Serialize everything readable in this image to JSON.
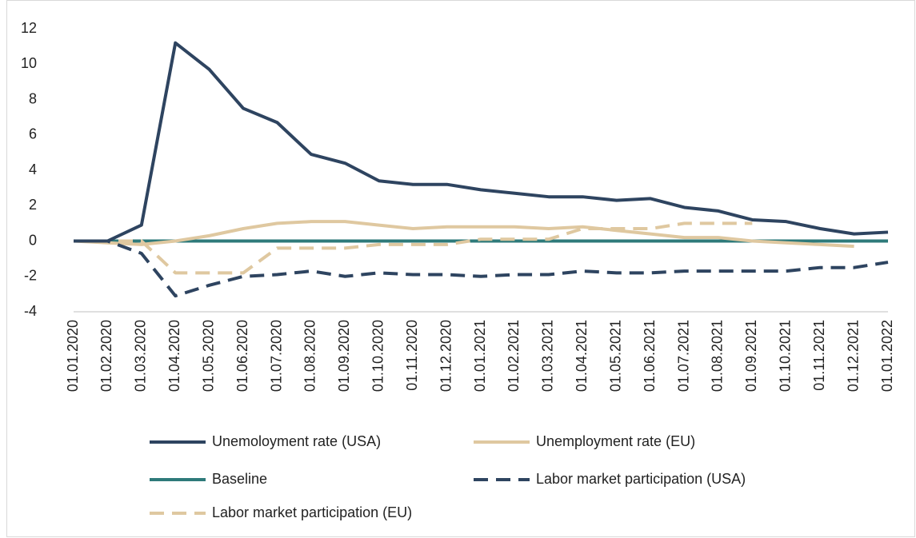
{
  "chart_data": {
    "type": "line",
    "categories": [
      "01.01.2020",
      "01.02.2020",
      "01.03.2020",
      "01.04.2020",
      "01.05.2020",
      "01.06.2020",
      "01.07.2020",
      "01.08.2020",
      "01.09.2020",
      "01.10.2020",
      "01.11.2020",
      "01.12.2020",
      "01.01.2021",
      "01.02.2021",
      "01.03.2021",
      "01.04.2021",
      "01.05.2021",
      "01.06.2021",
      "01.07.2021",
      "01.08.2021",
      "01.09.2021",
      "01.10.2021",
      "01.11.2021",
      "01.12.2021",
      "01.01.2022"
    ],
    "series": [
      {
        "name": "Unemoloyment rate (USA)",
        "color": "#2e4460",
        "style": "solid",
        "values": [
          0,
          0,
          0.9,
          11.2,
          9.7,
          7.5,
          6.7,
          4.9,
          4.4,
          3.4,
          3.2,
          3.2,
          2.9,
          2.7,
          2.5,
          2.5,
          2.3,
          2.4,
          1.9,
          1.7,
          1.2,
          1.1,
          0.7,
          0.4,
          0.5
        ]
      },
      {
        "name": "Unemployment rate (EU)",
        "color": "#dfc8a0",
        "style": "solid",
        "values": [
          0,
          -0.1,
          -0.2,
          0,
          0.3,
          0.7,
          1.0,
          1.1,
          1.1,
          0.9,
          0.7,
          0.8,
          0.8,
          0.8,
          0.7,
          0.8,
          0.6,
          0.4,
          0.2,
          0.2,
          0,
          -0.1,
          -0.2,
          -0.3,
          null
        ]
      },
      {
        "name": "Baseline",
        "color": "#2e7a7a",
        "style": "solid",
        "values": [
          0,
          0,
          0,
          0,
          0,
          0,
          0,
          0,
          0,
          0,
          0,
          0,
          0,
          0,
          0,
          0,
          0,
          0,
          0,
          0,
          0,
          0,
          0,
          0,
          0
        ]
      },
      {
        "name": "Labor market participation (USA)",
        "color": "#2e4460",
        "style": "dashed",
        "values": [
          0,
          0,
          -0.7,
          -3.1,
          -2.5,
          -2.0,
          -1.9,
          -1.7,
          -2.0,
          -1.8,
          -1.9,
          -1.9,
          -2.0,
          -1.9,
          -1.9,
          -1.7,
          -1.8,
          -1.8,
          -1.7,
          -1.7,
          -1.7,
          -1.7,
          -1.5,
          -1.5,
          -1.2
        ]
      },
      {
        "name": "Labor market participation (EU)",
        "color": "#dfc8a0",
        "style": "dashed",
        "values": [
          0,
          0,
          0,
          -1.8,
          -1.8,
          -1.8,
          -0.4,
          -0.4,
          -0.4,
          -0.2,
          -0.2,
          -0.2,
          0.1,
          0.1,
          0.1,
          0.7,
          0.7,
          0.7,
          1.0,
          1.0,
          1.0,
          null,
          null,
          null,
          null
        ]
      }
    ],
    "ylim": [
      -4,
      12
    ],
    "yticks": [
      -4,
      -2,
      0,
      2,
      4,
      6,
      8,
      10,
      12
    ],
    "grid": false
  }
}
